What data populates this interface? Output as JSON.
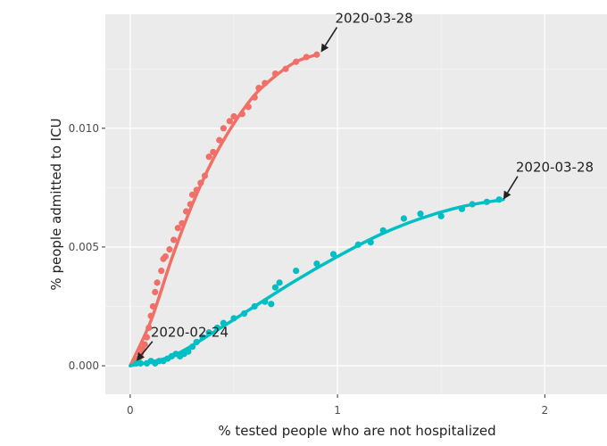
{
  "chart_data": {
    "type": "scatter",
    "title": "",
    "xlabel": "% tested people who are not hospitalized",
    "ylabel": "% people admitted to ICU",
    "xlim": [
      -0.12,
      2.3
    ],
    "ylim": [
      -0.0012,
      0.0148
    ],
    "x_ticks": [
      0,
      1,
      2
    ],
    "x_tick_labels": [
      "0",
      "1",
      "2"
    ],
    "y_ticks": [
      0.0,
      0.005,
      0.01
    ],
    "y_tick_labels": [
      "0.000",
      "0.005",
      "0.010"
    ],
    "grid": true,
    "legend": "none",
    "background": "#ebebeb",
    "series": [
      {
        "color": "#f07068",
        "points": [
          [
            0.02,
            0.0002
          ],
          [
            0.04,
            0.0003
          ],
          [
            0.05,
            0.0005
          ],
          [
            0.06,
            0.0007
          ],
          [
            0.07,
            0.0009
          ],
          [
            0.08,
            0.0012
          ],
          [
            0.09,
            0.0016
          ],
          [
            0.1,
            0.0021
          ],
          [
            0.11,
            0.0025
          ],
          [
            0.12,
            0.0031
          ],
          [
            0.13,
            0.0035
          ],
          [
            0.15,
            0.004
          ],
          [
            0.16,
            0.0045
          ],
          [
            0.17,
            0.0046
          ],
          [
            0.19,
            0.0049
          ],
          [
            0.21,
            0.0053
          ],
          [
            0.23,
            0.0058
          ],
          [
            0.25,
            0.006
          ],
          [
            0.27,
            0.0065
          ],
          [
            0.29,
            0.0068
          ],
          [
            0.3,
            0.0072
          ],
          [
            0.32,
            0.0074
          ],
          [
            0.34,
            0.0077
          ],
          [
            0.36,
            0.008
          ],
          [
            0.38,
            0.0088
          ],
          [
            0.4,
            0.009
          ],
          [
            0.43,
            0.0095
          ],
          [
            0.45,
            0.01
          ],
          [
            0.48,
            0.0103
          ],
          [
            0.5,
            0.0105
          ],
          [
            0.54,
            0.0106
          ],
          [
            0.57,
            0.0109
          ],
          [
            0.6,
            0.0113
          ],
          [
            0.62,
            0.0117
          ],
          [
            0.65,
            0.0119
          ],
          [
            0.7,
            0.0123
          ],
          [
            0.75,
            0.0125
          ],
          [
            0.8,
            0.0128
          ],
          [
            0.85,
            0.013
          ],
          [
            0.9,
            0.0131
          ]
        ],
        "smooth": [
          [
            0.0,
            0.0
          ],
          [
            0.1,
            0.0019
          ],
          [
            0.2,
            0.0045
          ],
          [
            0.3,
            0.0068
          ],
          [
            0.4,
            0.0087
          ],
          [
            0.5,
            0.0102
          ],
          [
            0.6,
            0.0114
          ],
          [
            0.7,
            0.0122
          ],
          [
            0.8,
            0.0128
          ],
          [
            0.9,
            0.0131
          ]
        ]
      },
      {
        "color": "#00bfc4",
        "points": [
          [
            0.03,
            0.0001
          ],
          [
            0.05,
            0.0001
          ],
          [
            0.08,
            0.0001
          ],
          [
            0.1,
            0.0002
          ],
          [
            0.12,
            0.0001
          ],
          [
            0.14,
            0.0002
          ],
          [
            0.16,
            0.0002
          ],
          [
            0.18,
            0.0003
          ],
          [
            0.2,
            0.0004
          ],
          [
            0.22,
            0.0005
          ],
          [
            0.24,
            0.0004
          ],
          [
            0.26,
            0.0005
          ],
          [
            0.28,
            0.0006
          ],
          [
            0.3,
            0.0008
          ],
          [
            0.32,
            0.001
          ],
          [
            0.35,
            0.0012
          ],
          [
            0.38,
            0.0014
          ],
          [
            0.42,
            0.0016
          ],
          [
            0.45,
            0.0018
          ],
          [
            0.5,
            0.002
          ],
          [
            0.55,
            0.0022
          ],
          [
            0.6,
            0.0025
          ],
          [
            0.65,
            0.0027
          ],
          [
            0.68,
            0.0026
          ],
          [
            0.7,
            0.0033
          ],
          [
            0.72,
            0.0035
          ],
          [
            0.8,
            0.004
          ],
          [
            0.9,
            0.0043
          ],
          [
            0.98,
            0.0047
          ],
          [
            1.1,
            0.0051
          ],
          [
            1.16,
            0.0052
          ],
          [
            1.22,
            0.0057
          ],
          [
            1.32,
            0.0062
          ],
          [
            1.4,
            0.0064
          ],
          [
            1.5,
            0.0063
          ],
          [
            1.6,
            0.0066
          ],
          [
            1.65,
            0.0068
          ],
          [
            1.72,
            0.0069
          ],
          [
            1.78,
            0.007
          ]
        ],
        "smooth": [
          [
            0.0,
            0.0
          ],
          [
            0.2,
            0.0004
          ],
          [
            0.4,
            0.0014
          ],
          [
            0.6,
            0.0025
          ],
          [
            0.8,
            0.0036
          ],
          [
            1.0,
            0.0046
          ],
          [
            1.2,
            0.0055
          ],
          [
            1.4,
            0.0062
          ],
          [
            1.6,
            0.0067
          ],
          [
            1.8,
            0.007
          ]
        ]
      }
    ],
    "annotations": [
      {
        "text": "2020-03-28",
        "target": [
          0.92,
          0.0132
        ],
        "label_anchor": "top-right"
      },
      {
        "text": "2020-03-28",
        "target": [
          1.8,
          0.007
        ],
        "label_anchor": "top-right"
      },
      {
        "text": "2020-02-24",
        "target": [
          0.03,
          0.0002
        ],
        "label_anchor": "top-right"
      }
    ]
  }
}
